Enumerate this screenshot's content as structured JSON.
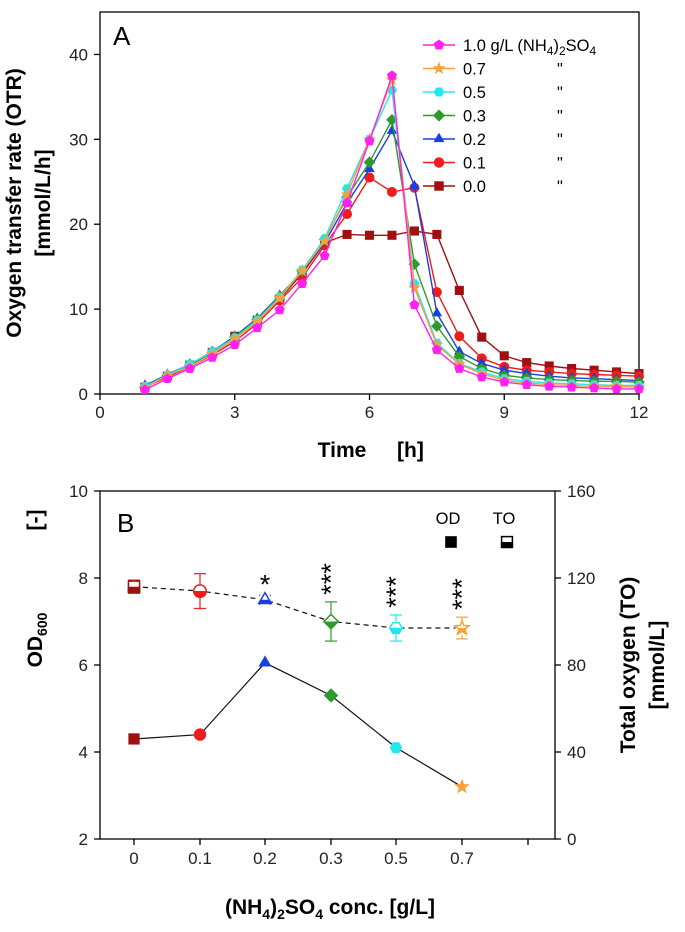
{
  "chart_data": [
    {
      "type": "line",
      "panel": "A",
      "xlabel": "Time",
      "xunit": "[h]",
      "ylabel": "Oxygen transfer rate (OTR)",
      "yunit": "[mmol/L/h]",
      "xlim": [
        0,
        12
      ],
      "ylim": [
        0,
        45
      ],
      "xticks": [
        "0",
        "3",
        "6",
        "9",
        "12"
      ],
      "yticks": [
        "0",
        "10",
        "20",
        "30",
        "40"
      ],
      "legend_position": "top-right",
      "legend_title_parts": {
        "main": "1.0 g/L (NH",
        "sub1": "4",
        "mid": ")",
        "sub2": "2",
        "end": "SO",
        "sub3": "4"
      },
      "ditto": "\"",
      "series": [
        {
          "name": "1.0 g/L (NH4)2SO4",
          "label": "1.0 g/L",
          "color": "#ff22ee",
          "marker": "pentagon",
          "x": [
            1.0,
            1.5,
            2.0,
            2.5,
            3.0,
            3.5,
            4.0,
            4.5,
            5.0,
            5.5,
            6.0,
            6.5,
            7.0,
            7.5,
            8.0,
            8.5,
            9.0,
            9.5,
            10.0,
            10.5,
            11.0,
            11.5,
            12.0
          ],
          "y": [
            0.5,
            1.8,
            3.0,
            4.3,
            5.8,
            7.8,
            9.9,
            13.0,
            16.3,
            22.5,
            29.8,
            37.5,
            10.5,
            5.2,
            3.0,
            2.0,
            1.4,
            1.1,
            0.9,
            0.8,
            0.7,
            0.6,
            0.6
          ]
        },
        {
          "name": "0.7",
          "label": "0.7",
          "color": "#f6a13a",
          "marker": "star",
          "x": [
            1.0,
            1.5,
            2.0,
            2.5,
            3.0,
            3.5,
            4.0,
            4.5,
            5.0,
            5.5,
            6.0,
            6.5,
            7.0,
            7.5,
            8.0,
            8.5,
            9.0,
            9.5,
            10.0,
            10.5,
            11.0,
            11.5,
            12.0
          ],
          "y": [
            0.7,
            2.2,
            3.2,
            4.7,
            6.5,
            8.5,
            11.3,
            14.5,
            18.0,
            23.5,
            30.0,
            37.0,
            12.5,
            5.8,
            3.5,
            2.4,
            1.6,
            1.3,
            1.1,
            1.0,
            0.9,
            0.9,
            0.8
          ]
        },
        {
          "name": "0.5",
          "label": "0.5",
          "color": "#22e8ee",
          "marker": "hexagon",
          "x": [
            1.0,
            1.5,
            2.0,
            2.5,
            3.0,
            3.5,
            4.0,
            4.5,
            5.0,
            5.5,
            6.0,
            6.5,
            7.0,
            7.5,
            8.0,
            8.5,
            9.0,
            9.5,
            10.0,
            10.5,
            11.0,
            11.5,
            12.0
          ],
          "y": [
            0.9,
            2.2,
            3.5,
            5.0,
            6.6,
            8.7,
            11.4,
            14.6,
            18.3,
            24.2,
            30.0,
            35.8,
            13.0,
            6.0,
            3.6,
            2.6,
            1.8,
            1.5,
            1.3,
            1.2,
            1.1,
            1.0,
            1.0
          ]
        },
        {
          "name": "0.3",
          "label": "0.3",
          "color": "#2e9a2e",
          "marker": "diamond",
          "x": [
            1.0,
            1.5,
            2.0,
            2.5,
            3.0,
            3.5,
            4.0,
            4.5,
            5.0,
            5.5,
            6.0,
            6.5,
            7.0,
            7.5,
            8.0,
            8.5,
            9.0,
            9.5,
            10.0,
            10.5,
            11.0,
            11.5,
            12.0
          ],
          "y": [
            0.8,
            2.2,
            3.4,
            4.9,
            6.7,
            8.8,
            11.5,
            14.5,
            18.2,
            23.2,
            27.3,
            32.3,
            15.3,
            8.0,
            4.4,
            3.0,
            2.2,
            1.9,
            1.7,
            1.6,
            1.5,
            1.5,
            1.4
          ]
        },
        {
          "name": "0.2",
          "label": "0.2",
          "color": "#1a3fe0",
          "marker": "triangle",
          "x": [
            1.0,
            1.5,
            2.0,
            2.5,
            3.0,
            3.5,
            4.0,
            4.5,
            5.0,
            5.5,
            6.0,
            6.5,
            7.0,
            7.5,
            8.0,
            8.5,
            9.0,
            9.5,
            10.0,
            10.5,
            11.0,
            11.5,
            12.0
          ],
          "y": [
            1.0,
            2.3,
            3.5,
            5.0,
            6.8,
            8.9,
            11.6,
            14.4,
            17.8,
            22.5,
            26.5,
            31.0,
            24.5,
            9.5,
            5.0,
            3.6,
            2.8,
            2.4,
            2.1,
            1.9,
            1.8,
            1.7,
            1.6
          ]
        },
        {
          "name": "0.1",
          "label": "0.1",
          "color": "#ee1c1c",
          "marker": "circle",
          "x": [
            1.0,
            1.5,
            2.0,
            2.5,
            3.0,
            3.5,
            4.0,
            4.5,
            5.0,
            5.5,
            6.0,
            6.5,
            7.0,
            7.5,
            8.0,
            8.5,
            9.0,
            9.5,
            10.0,
            10.5,
            11.0,
            11.5,
            12.0
          ],
          "y": [
            0.8,
            2.0,
            3.2,
            4.6,
            6.2,
            8.3,
            11.0,
            13.7,
            17.5,
            21.2,
            25.5,
            23.8,
            24.3,
            12.0,
            6.8,
            4.2,
            3.2,
            2.8,
            2.6,
            2.4,
            2.3,
            2.2,
            2.1
          ]
        },
        {
          "name": "0.0",
          "label": "0.0",
          "color": "#a01010",
          "marker": "square",
          "x": [
            1.0,
            1.5,
            2.0,
            2.5,
            3.0,
            3.5,
            4.0,
            4.5,
            5.0,
            5.5,
            6.0,
            6.5,
            7.0,
            7.5,
            8.0,
            8.5,
            9.0,
            9.5,
            10.0,
            10.5,
            11.0,
            11.5,
            12.0
          ],
          "y": [
            0.8,
            2.1,
            3.4,
            4.9,
            6.8,
            8.7,
            11.2,
            14.2,
            17.8,
            18.8,
            18.7,
            18.7,
            19.2,
            18.8,
            12.2,
            6.7,
            4.5,
            3.7,
            3.3,
            3.0,
            2.8,
            2.6,
            2.4
          ]
        }
      ]
    },
    {
      "type": "line",
      "panel": "B",
      "xlabel_parts": {
        "a": "(NH",
        "s1": "4",
        "b": ")",
        "s2": "2",
        "c": "SO",
        "s3": "4",
        "d": " conc. [g/L]"
      },
      "categories": [
        "0",
        "0.1",
        "0.2",
        "0.3",
        "0.5",
        "0.7"
      ],
      "y_left": {
        "label_main": "OD",
        "label_sub": "600",
        "label_unit": "[-]",
        "lim": [
          2,
          10
        ],
        "ticks": [
          "2",
          "4",
          "6",
          "8",
          "10"
        ]
      },
      "y_right": {
        "label": "Total oxygen  (TO)",
        "unit": "[mmol/L]",
        "lim": [
          0,
          160
        ],
        "ticks": [
          "0",
          "40",
          "80",
          "120",
          "160"
        ]
      },
      "legend": {
        "od_label": "OD",
        "to_label": "TO",
        "position": "top-right"
      },
      "colors": [
        "#a01010",
        "#ee1c1c",
        "#1a3fe0",
        "#2e9a2e",
        "#22e8ee",
        "#f6a13a"
      ],
      "markers": [
        "square",
        "circle",
        "triangle",
        "diamond",
        "hexagon",
        "star"
      ],
      "series": [
        {
          "name": "OD",
          "axis": "left",
          "style": "solid",
          "fill": "solid",
          "values": [
            4.3,
            4.4,
            6.05,
            5.3,
            4.1,
            3.2
          ]
        },
        {
          "name": "TO",
          "axis": "right",
          "style": "dashed",
          "fill": "half",
          "values": [
            116,
            114,
            110,
            100,
            97,
            97
          ],
          "error": [
            3,
            8,
            2,
            9,
            6,
            5
          ],
          "significance": [
            "",
            "",
            "*",
            "***",
            "***",
            "***"
          ]
        }
      ]
    }
  ]
}
